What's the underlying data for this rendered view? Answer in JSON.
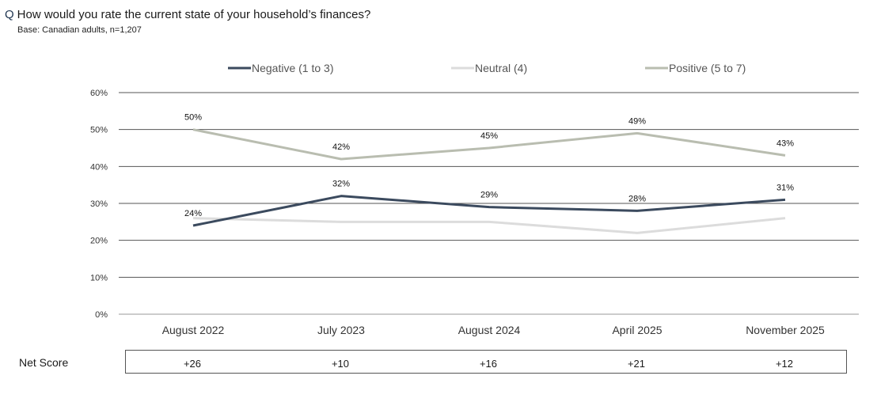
{
  "question": {
    "marker": "Q",
    "text": "How would you rate the current state of your household’s finances?"
  },
  "base": "Base: Canadian adults,  n=1,207",
  "chart_data": {
    "type": "line",
    "categories": [
      "August 2022",
      "July 2023",
      "August 2024",
      "April 2025",
      "November 2025"
    ],
    "ylim": [
      0,
      60
    ],
    "yticks": [
      0,
      10,
      20,
      30,
      40,
      50,
      60
    ],
    "ytick_labels": [
      "0%",
      "10%",
      "20%",
      "30%",
      "40%",
      "50%",
      "60%"
    ],
    "grid": true,
    "legend_position": "top",
    "series": [
      {
        "name": "Negative (1 to 3)",
        "color": "#3b4a5e",
        "values": [
          24,
          32,
          29,
          28,
          31
        ],
        "labels": [
          "24%",
          "32%",
          "29%",
          "28%",
          "31%"
        ]
      },
      {
        "name": "Neutral (4)",
        "color": "#dcdcdc",
        "values": [
          26,
          25,
          25,
          22,
          26
        ],
        "labels": []
      },
      {
        "name": "Positive (5 to 7)",
        "color": "#b9bdb0",
        "values": [
          50,
          42,
          45,
          49,
          43
        ],
        "labels": [
          "50%",
          "42%",
          "45%",
          "49%",
          "43%"
        ]
      }
    ]
  },
  "net_score": {
    "label": "Net Score",
    "values": [
      "+26",
      "+10",
      "+16",
      "+21",
      "+12"
    ]
  }
}
